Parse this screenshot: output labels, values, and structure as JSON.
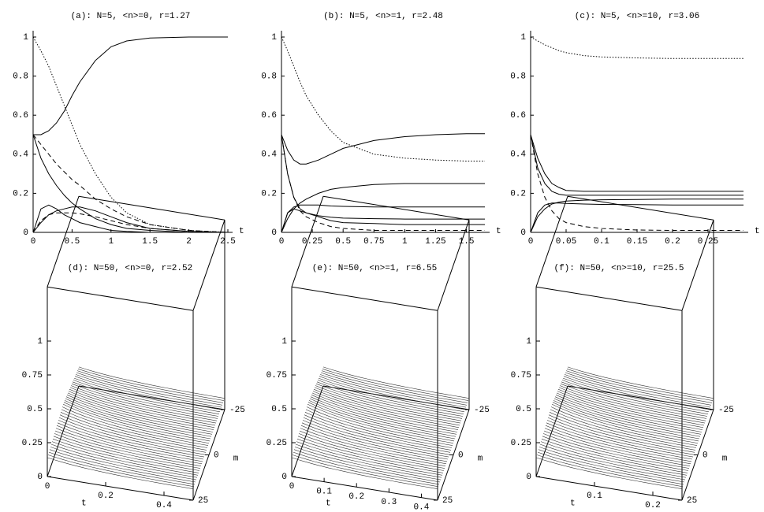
{
  "chart_data": [
    {
      "type": "line",
      "title": "(a): N=5, <n>=0, r=1.27",
      "xlabel": "t",
      "x": [
        0,
        0.1,
        0.2,
        0.3,
        0.4,
        0.5,
        0.6,
        0.8,
        1,
        1.2,
        1.5,
        2,
        2.5
      ],
      "xlim": [
        0,
        2.5
      ],
      "xticks": [
        0,
        0.5,
        1,
        1.5,
        2,
        2.5
      ],
      "ylim": [
        0,
        1
      ],
      "yticks": [
        0,
        0.2,
        0.4,
        0.6,
        0.8,
        1
      ],
      "series": [
        {
          "color": "#000",
          "style": "solid",
          "values": [
            0.5,
            0.5,
            0.52,
            0.56,
            0.62,
            0.7,
            0.77,
            0.88,
            0.95,
            0.98,
            0.995,
            1,
            1
          ]
        },
        {
          "color": "#000",
          "style": "dotted",
          "values": [
            1,
            0.93,
            0.85,
            0.75,
            0.65,
            0.55,
            0.45,
            0.3,
            0.18,
            0.1,
            0.04,
            0.01,
            0
          ]
        },
        {
          "color": "#000",
          "style": "solid",
          "values": [
            0.5,
            0.38,
            0.3,
            0.24,
            0.19,
            0.15,
            0.12,
            0.07,
            0.04,
            0.02,
            0.01,
            0,
            0
          ]
        },
        {
          "color": "#000",
          "style": "dashed",
          "values": [
            0.5,
            0.45,
            0.4,
            0.35,
            0.31,
            0.27,
            0.24,
            0.17,
            0.12,
            0.08,
            0.04,
            0.01,
            0
          ]
        },
        {
          "color": "#000",
          "style": "solid",
          "values": [
            0,
            0.12,
            0.14,
            0.12,
            0.09,
            0.07,
            0.05,
            0.03,
            0.01,
            0.005,
            0,
            0,
            0
          ]
        },
        {
          "color": "#000",
          "style": "solid",
          "values": [
            0,
            0.05,
            0.09,
            0.11,
            0.12,
            0.13,
            0.13,
            0.11,
            0.08,
            0.05,
            0.02,
            0.005,
            0
          ]
        },
        {
          "color": "#000",
          "style": "dashed",
          "values": [
            0,
            0.06,
            0.09,
            0.1,
            0.1,
            0.1,
            0.095,
            0.08,
            0.06,
            0.04,
            0.02,
            0.005,
            0
          ]
        }
      ]
    },
    {
      "type": "line",
      "title": "(b): N=5, <n>=1, r=2.48",
      "xlabel": "t",
      "x": [
        0,
        0.05,
        0.1,
        0.15,
        0.2,
        0.3,
        0.4,
        0.5,
        0.75,
        1,
        1.25,
        1.5,
        1.65
      ],
      "xlim": [
        0,
        1.65
      ],
      "xticks": [
        0,
        0.25,
        0.5,
        0.75,
        1,
        1.25,
        1.5
      ],
      "ylim": [
        0,
        1
      ],
      "yticks": [
        0,
        0.2,
        0.4,
        0.6,
        0.8,
        1
      ],
      "series": [
        {
          "color": "#000",
          "style": "dotted",
          "values": [
            1,
            0.93,
            0.85,
            0.77,
            0.7,
            0.6,
            0.52,
            0.46,
            0.4,
            0.38,
            0.37,
            0.365,
            0.365
          ]
        },
        {
          "color": "#000",
          "style": "solid",
          "values": [
            0.5,
            0.42,
            0.37,
            0.35,
            0.35,
            0.37,
            0.4,
            0.43,
            0.47,
            0.49,
            0.5,
            0.505,
            0.505
          ]
        },
        {
          "color": "#000",
          "style": "solid",
          "values": [
            0,
            0.07,
            0.12,
            0.15,
            0.17,
            0.2,
            0.22,
            0.23,
            0.245,
            0.25,
            0.25,
            0.25,
            0.25
          ]
        },
        {
          "color": "#000",
          "style": "solid",
          "values": [
            0,
            0.1,
            0.13,
            0.14,
            0.14,
            0.14,
            0.135,
            0.133,
            0.13,
            0.13,
            0.13,
            0.13,
            0.13
          ]
        },
        {
          "color": "#000",
          "style": "solid",
          "values": [
            0.5,
            0.3,
            0.18,
            0.12,
            0.1,
            0.085,
            0.078,
            0.073,
            0.07,
            0.068,
            0.068,
            0.068,
            0.068
          ]
        },
        {
          "color": "#000",
          "style": "solid",
          "values": [
            0,
            0.1,
            0.12,
            0.11,
            0.1,
            0.08,
            0.06,
            0.05,
            0.045,
            0.04,
            0.04,
            0.04,
            0.04
          ]
        },
        {
          "color": "#000",
          "style": "dashed",
          "values": [
            0.5,
            0.3,
            0.18,
            0.11,
            0.08,
            0.05,
            0.03,
            0.02,
            0.01,
            0.01,
            0.01,
            0.01,
            0.01
          ]
        }
      ]
    },
    {
      "type": "line",
      "title": "(c): N=5, <n>=10, r=3.06",
      "xlabel": "t",
      "x": [
        0,
        0.01,
        0.02,
        0.03,
        0.04,
        0.05,
        0.075,
        0.1,
        0.15,
        0.2,
        0.25,
        0.3
      ],
      "xlim": [
        0,
        0.3
      ],
      "xticks": [
        0,
        0.05,
        0.1,
        0.15,
        0.2,
        0.25
      ],
      "ylim": [
        0,
        1
      ],
      "yticks": [
        0,
        0.2,
        0.4,
        0.6,
        0.8,
        1
      ],
      "series": [
        {
          "color": "#000",
          "style": "dotted",
          "values": [
            1,
            0.98,
            0.96,
            0.945,
            0.93,
            0.92,
            0.905,
            0.898,
            0.893,
            0.89,
            0.89,
            0.89
          ]
        },
        {
          "color": "#000",
          "style": "solid",
          "values": [
            0.5,
            0.38,
            0.3,
            0.25,
            0.23,
            0.215,
            0.21,
            0.21,
            0.21,
            0.21,
            0.21,
            0.21
          ]
        },
        {
          "color": "#000",
          "style": "solid",
          "values": [
            0.5,
            0.33,
            0.25,
            0.21,
            0.195,
            0.19,
            0.19,
            0.19,
            0.19,
            0.19,
            0.19,
            0.19
          ]
        },
        {
          "color": "#000",
          "style": "solid",
          "values": [
            0,
            0.08,
            0.12,
            0.145,
            0.155,
            0.16,
            0.165,
            0.167,
            0.168,
            0.17,
            0.17,
            0.17
          ]
        },
        {
          "color": "#000",
          "style": "solid",
          "values": [
            0,
            0.1,
            0.14,
            0.15,
            0.15,
            0.148,
            0.145,
            0.143,
            0.142,
            0.14,
            0.14,
            0.14
          ]
        },
        {
          "color": "#000",
          "style": "dashed",
          "values": [
            0.5,
            0.3,
            0.18,
            0.11,
            0.07,
            0.05,
            0.03,
            0.02,
            0.012,
            0.01,
            0.01,
            0.01
          ]
        }
      ]
    },
    {
      "type": "surface3d",
      "title": "(d): N=50, <n>=0, r=2.52",
      "xlabel": "t",
      "ylabel": "m",
      "tlim": [
        0,
        0.5
      ],
      "tticks": [
        0,
        0.2,
        0.4
      ],
      "mlim": [
        -25,
        25
      ],
      "mticks": [
        -25,
        0,
        25
      ],
      "zlim": [
        0,
        1.4
      ],
      "zticks": [
        0,
        0.25,
        0.5,
        0.75,
        1
      ]
    },
    {
      "type": "surface3d",
      "title": "(e): N=50, <n>=1, r=6.55",
      "xlabel": "t",
      "ylabel": "m",
      "tlim": [
        0,
        0.45
      ],
      "tticks": [
        0,
        0.1,
        0.2,
        0.3,
        0.4
      ],
      "mlim": [
        -25,
        25
      ],
      "mticks": [
        -25,
        0,
        25
      ],
      "zlim": [
        0,
        1.4
      ],
      "zticks": [
        0,
        0.25,
        0.5,
        0.75,
        1
      ]
    },
    {
      "type": "surface3d",
      "title": "(f): N=50, <n>=10, r=25.5",
      "xlabel": "t",
      "ylabel": "m",
      "tlim": [
        0,
        0.25
      ],
      "tticks": [
        0.1,
        0.2
      ],
      "mlim": [
        -25,
        25
      ],
      "mticks": [
        -25,
        0,
        25
      ],
      "zlim": [
        0,
        1.4
      ],
      "zticks": [
        0,
        0.25,
        0.5,
        0.75,
        1
      ]
    }
  ]
}
